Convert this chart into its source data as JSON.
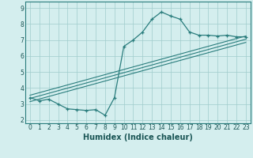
{
  "main_x": [
    0,
    1,
    2,
    3,
    4,
    5,
    6,
    7,
    8,
    9,
    10,
    11,
    12,
    13,
    14,
    15,
    16,
    17,
    18,
    19,
    20,
    21,
    22,
    23
  ],
  "main_y": [
    3.4,
    3.2,
    3.3,
    3.0,
    2.7,
    2.65,
    2.6,
    2.65,
    2.3,
    3.4,
    6.6,
    7.0,
    7.5,
    8.3,
    8.75,
    8.5,
    8.3,
    7.5,
    7.3,
    7.3,
    7.25,
    7.3,
    7.2,
    7.2
  ],
  "line_color": "#2a7d7d",
  "marker_color": "#2a7d7d",
  "bg_color": "#d4eeee",
  "grid_color": "#a0cccc",
  "xlabel": "Humidex (Indice chaleur)",
  "xlabel_fontsize": 7,
  "ylim": [
    1.8,
    9.4
  ],
  "xlim": [
    -0.5,
    23.5
  ],
  "yticks": [
    2,
    3,
    4,
    5,
    6,
    7,
    8,
    9
  ],
  "xtick_labels": [
    "0",
    "1",
    "2",
    "3",
    "4",
    "5",
    "6",
    "7",
    "8",
    "9",
    "10",
    "11",
    "12",
    "13",
    "14",
    "15",
    "16",
    "17",
    "18",
    "19",
    "20",
    "21",
    "22",
    "23"
  ],
  "tick_fontsize": 5.5,
  "trend_lines": [
    {
      "x0": 0,
      "y0": 3.55,
      "x1": 23,
      "y1": 7.25
    },
    {
      "x0": 0,
      "y0": 3.35,
      "x1": 23,
      "y1": 7.05
    },
    {
      "x0": 0,
      "y0": 3.15,
      "x1": 23,
      "y1": 6.85
    }
  ]
}
